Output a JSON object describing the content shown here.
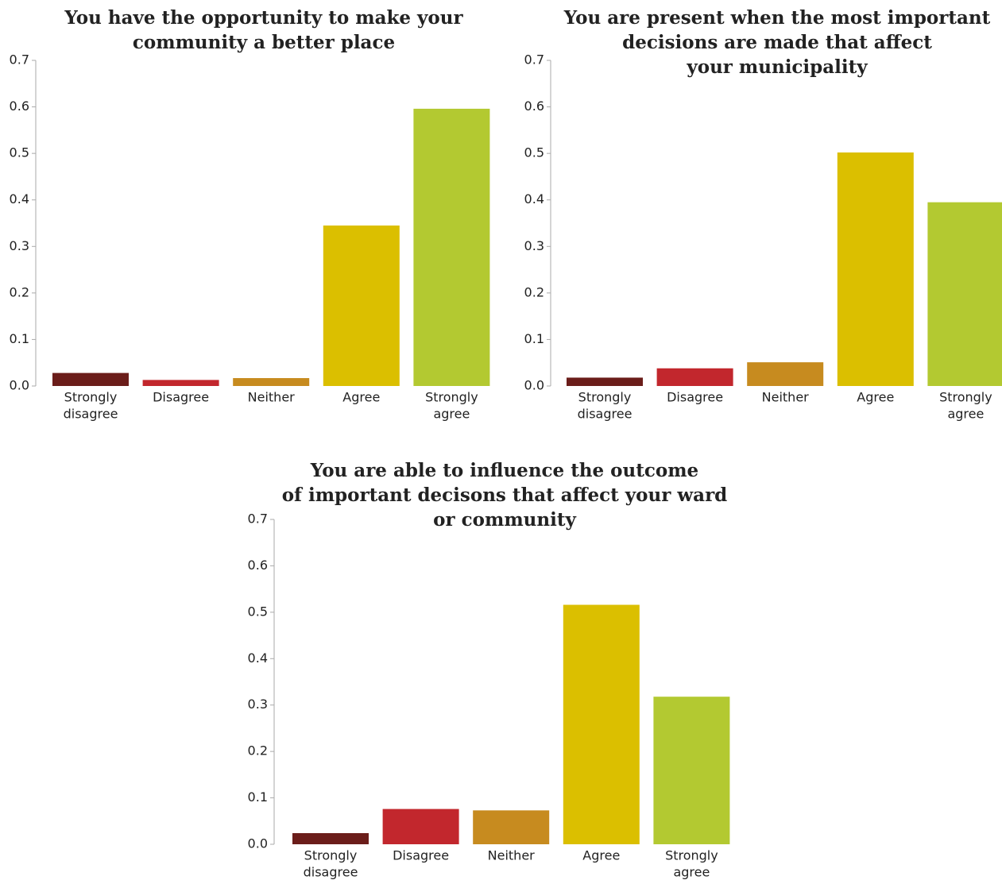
{
  "chart_data": [
    {
      "type": "bar",
      "title_lines": [
        "You have the opportunity to make your",
        "community a better place"
      ],
      "categories": [
        [
          "Strongly",
          "disagree"
        ],
        [
          "Disagree"
        ],
        [
          "Neither"
        ],
        [
          "Agree"
        ],
        [
          "Strongly",
          "agree"
        ]
      ],
      "values": [
        0.028,
        0.013,
        0.017,
        0.345,
        0.596
      ],
      "ylim": [
        0,
        0.7
      ],
      "yticks": [
        "0.0",
        "0.1",
        "0.2",
        "0.3",
        "0.4",
        "0.5",
        "0.6",
        "0.7"
      ],
      "colors": [
        "#6b1d1a",
        "#c2272d",
        "#c78b1f",
        "#dbbf00",
        "#b3c931"
      ],
      "grid": false
    },
    {
      "type": "bar",
      "title_lines": [
        "You are present when the most important",
        "decisions are made that affect",
        "your municipality"
      ],
      "categories": [
        [
          "Strongly",
          "disagree"
        ],
        [
          "Disagree"
        ],
        [
          "Neither"
        ],
        [
          "Agree"
        ],
        [
          "Strongly",
          "agree"
        ]
      ],
      "values": [
        0.018,
        0.038,
        0.051,
        0.502,
        0.395
      ],
      "ylim": [
        0,
        0.7
      ],
      "yticks": [
        "0.0",
        "0.1",
        "0.2",
        "0.3",
        "0.4",
        "0.5",
        "0.6",
        "0.7"
      ],
      "colors": [
        "#6b1d1a",
        "#c2272d",
        "#c78b1f",
        "#dbbf00",
        "#b3c931"
      ],
      "grid": false
    },
    {
      "type": "bar",
      "title_lines": [
        "You are able to influence the outcome",
        "of important decisons that affect your ward",
        "or community"
      ],
      "categories": [
        [
          "Strongly",
          "disagree"
        ],
        [
          "Disagree"
        ],
        [
          "Neither"
        ],
        [
          "Agree"
        ],
        [
          "Strongly",
          "agree"
        ]
      ],
      "values": [
        0.024,
        0.076,
        0.073,
        0.516,
        0.318
      ],
      "ylim": [
        0,
        0.7
      ],
      "yticks": [
        "0.0",
        "0.1",
        "0.2",
        "0.3",
        "0.4",
        "0.5",
        "0.6",
        "0.7"
      ],
      "colors": [
        "#6b1d1a",
        "#c2272d",
        "#c78b1f",
        "#dbbf00",
        "#b3c931"
      ],
      "grid": false
    }
  ]
}
